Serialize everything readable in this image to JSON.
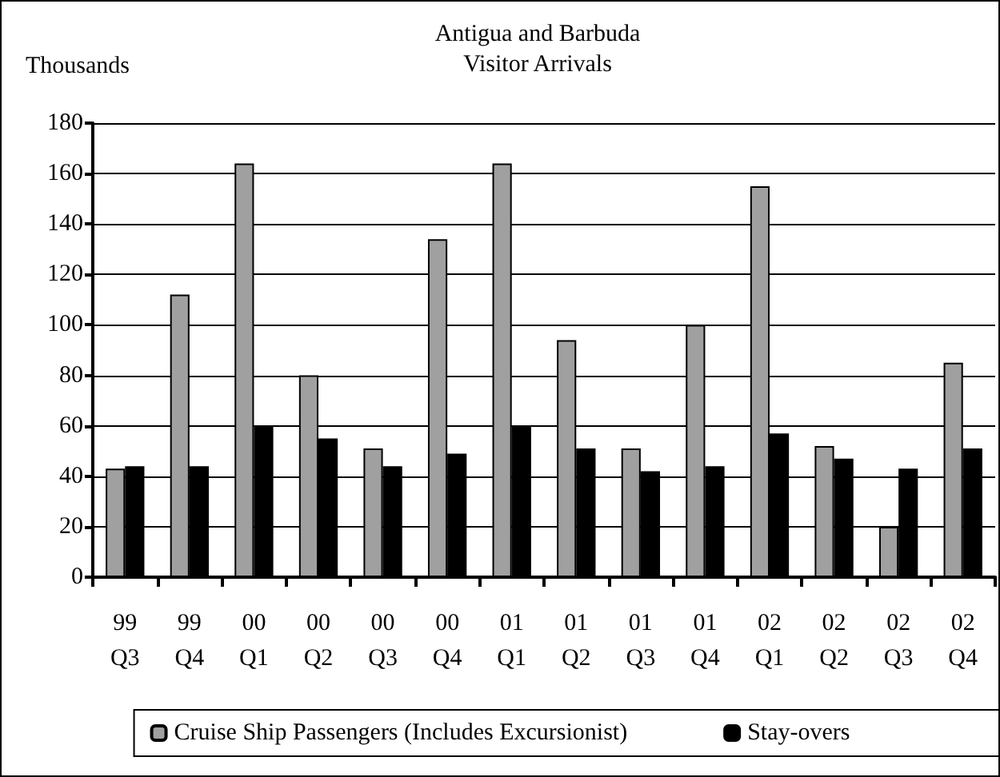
{
  "chart_data": {
    "type": "bar",
    "title": "Antigua and Barbuda",
    "subtitle": "Visitor Arrivals",
    "ylabel": "Thousands",
    "categories": [
      "99\nQ3",
      "99\nQ4",
      "00\nQ1",
      "00\nQ2",
      "00\nQ3",
      "00\nQ4",
      "01\nQ1",
      "01\nQ2",
      "01\nQ3",
      "01\nQ4",
      "02\nQ1",
      "02\nQ2",
      "02\nQ3",
      "02\nQ4"
    ],
    "series": [
      {
        "name": "Cruise Ship Passengers (Includes Excursionist)",
        "color": "#a0a0a0",
        "values": [
          43,
          112,
          164,
          80,
          51,
          134,
          164,
          94,
          51,
          100,
          155,
          52,
          20,
          85
        ]
      },
      {
        "name": "Stay-overs",
        "color": "#000000",
        "values": [
          44,
          44,
          60,
          55,
          44,
          49,
          60,
          51,
          42,
          44,
          57,
          47,
          43,
          51
        ]
      }
    ],
    "ylim": [
      0,
      180
    ],
    "yticks": [
      0,
      20,
      40,
      60,
      80,
      100,
      120,
      140,
      160,
      180
    ],
    "grid": "y",
    "legend": "bottom"
  }
}
